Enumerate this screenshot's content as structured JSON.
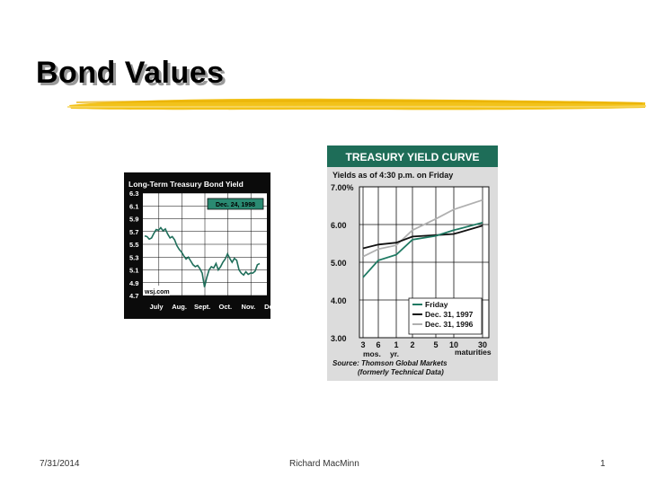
{
  "slide": {
    "title": "Bond Values",
    "footer": {
      "date": "7/31/2014",
      "author": "Richard MacMinn",
      "page": "1"
    },
    "colors": {
      "accent_brush": "#f2c21a",
      "title_shadow": "#9a9a9a"
    }
  },
  "chart_data": [
    {
      "type": "line",
      "title": "Long-Term Treasury Bond Yield",
      "date_badge": "Dec. 24, 1998",
      "source": "wsj.com",
      "categories": [
        "July",
        "Aug.",
        "Sept.",
        "Oct.",
        "Nov.",
        "Dec."
      ],
      "yticks": [
        "6.3",
        "6.1",
        "5.9",
        "5.7",
        "5.5",
        "5.3",
        "5.1",
        "4.9",
        "4.7"
      ],
      "ylim": [
        4.7,
        6.3
      ],
      "x": [
        0.0,
        0.1,
        0.2,
        0.3,
        0.4,
        0.5,
        0.6,
        0.7,
        0.8,
        0.9,
        1.0,
        1.1,
        1.2,
        1.3,
        1.4,
        1.5,
        1.6,
        1.7,
        1.8,
        1.9,
        2.0,
        2.1,
        2.2,
        2.3,
        2.4,
        2.5,
        2.6,
        2.7,
        2.8,
        2.9,
        3.0,
        3.1,
        3.2,
        3.3,
        3.4,
        3.5,
        3.6,
        3.7,
        3.8,
        3.9,
        4.0,
        4.1,
        4.2,
        4.3,
        4.4,
        4.5,
        4.6,
        4.7,
        4.8,
        4.9,
        5.0
      ],
      "values": [
        5.63,
        5.62,
        5.58,
        5.6,
        5.67,
        5.73,
        5.72,
        5.76,
        5.71,
        5.74,
        5.66,
        5.6,
        5.62,
        5.57,
        5.48,
        5.42,
        5.38,
        5.32,
        5.27,
        5.3,
        5.24,
        5.18,
        5.15,
        5.17,
        5.12,
        5.05,
        4.83,
        4.98,
        5.1,
        5.15,
        5.13,
        5.2,
        5.1,
        5.15,
        5.22,
        5.27,
        5.35,
        5.28,
        5.22,
        5.28,
        5.25,
        5.1,
        5.05,
        5.02,
        5.07,
        5.03,
        5.05,
        5.05,
        5.08,
        5.18,
        5.2
      ],
      "grid": true,
      "colors": {
        "background": "#0b0b0b",
        "plot": "#ffffff",
        "line": "#1f6e5a",
        "badge": "#2a8a72"
      }
    },
    {
      "type": "line",
      "title": "TREASURY YIELD CURVE",
      "subtitle": "Yields as of 4:30 p.m. on Friday",
      "yticks": [
        "7.00%",
        "6.00",
        "5.00",
        "4.00",
        "3.00"
      ],
      "ylim": [
        3.0,
        7.0
      ],
      "categories": [
        "3",
        "6",
        "1",
        "2",
        "5",
        "10",
        "30"
      ],
      "x_sublabels": [
        "mos.",
        "yr.",
        "maturities"
      ],
      "series": [
        {
          "name": "Friday",
          "values": [
            4.6,
            5.05,
            5.2,
            5.6,
            5.7,
            5.85,
            6.05
          ]
        },
        {
          "name": "Dec. 31, 1997",
          "values": [
            5.37,
            5.47,
            5.52,
            5.68,
            5.72,
            5.75,
            5.97
          ]
        },
        {
          "name": "Dec. 31, 1996",
          "values": [
            5.15,
            5.35,
            5.45,
            5.85,
            6.15,
            6.4,
            6.65
          ]
        }
      ],
      "source_lines": [
        "Source: Thomson Global Markets",
        "(formerly Technical Data)"
      ],
      "legend": "bottom-right",
      "grid": true,
      "colors": {
        "header": "#1e6d58",
        "panel": "#dcdcdc",
        "Friday": "#1f7a63",
        "Dec. 31, 1997": "#111111",
        "Dec. 31, 1996": "#b0b0b0"
      }
    }
  ]
}
